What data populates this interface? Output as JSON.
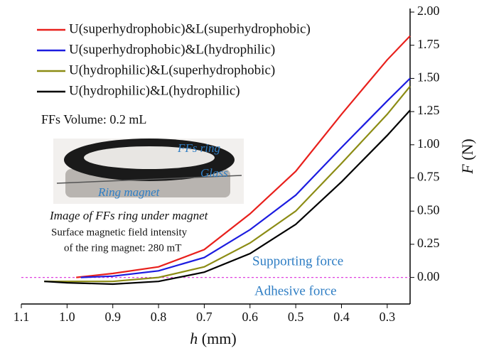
{
  "chart_data": {
    "type": "line",
    "x_label_symbol": "h",
    "x_label_unit": "(mm)",
    "y_label_symbol": "F",
    "y_label_unit": "(N)",
    "xlim": [
      1.1,
      0.25
    ],
    "xticks": [
      1.1,
      {
        "value": 1,
        "label": "1.0"
      },
      0.9,
      0.8,
      0.7,
      0.6,
      0.5,
      0.4,
      0.3
    ],
    "ylim": [
      -0.2,
      2.0
    ],
    "yticks": [
      {
        "value": 0,
        "label": "0.00"
      },
      {
        "value": 0.25,
        "label": "0.25"
      },
      {
        "value": 0.5,
        "label": "0.50"
      },
      {
        "value": 0.75,
        "label": "0.75"
      },
      {
        "value": 1,
        "label": "1.00"
      },
      {
        "value": 1.25,
        "label": "1.25"
      },
      {
        "value": 1.5,
        "label": "1.50"
      },
      {
        "value": 1.75,
        "label": "1.75"
      },
      {
        "value": 2,
        "label": "2.00"
      }
    ],
    "reference_line": {
      "value": 0,
      "color": "#e040e0"
    },
    "legend": "upper left",
    "series": [
      {
        "name": "U(superhydrophobic)&L(superhydrophobic)",
        "color": "#e8201c",
        "x": [
          0.98,
          0.9,
          0.8,
          0.7,
          0.6,
          0.5,
          0.4,
          0.3,
          0.25
        ],
        "values": [
          0.0,
          0.03,
          0.08,
          0.21,
          0.48,
          0.8,
          1.23,
          1.64,
          1.82
        ]
      },
      {
        "name": "U(superhydrophobic)&L(hydrophilic)",
        "color": "#1c1ce0",
        "x": [
          0.97,
          0.9,
          0.8,
          0.7,
          0.6,
          0.5,
          0.4,
          0.3,
          0.25
        ],
        "values": [
          0.0,
          0.01,
          0.05,
          0.15,
          0.36,
          0.62,
          0.98,
          1.33,
          1.5
        ]
      },
      {
        "name": "U(hydrophilic)&L(superhydrophobic)",
        "color": "#8c8c14",
        "x": [
          1.05,
          1.0,
          0.9,
          0.8,
          0.7,
          0.6,
          0.5,
          0.4,
          0.3,
          0.25
        ],
        "values": [
          -0.03,
          -0.03,
          -0.03,
          0.0,
          0.08,
          0.26,
          0.5,
          0.86,
          1.23,
          1.44
        ]
      },
      {
        "name": "U(hydrophilic)&L(hydrophilic)",
        "color": "#000000",
        "x": [
          1.05,
          1.0,
          0.9,
          0.8,
          0.7,
          0.6,
          0.5,
          0.4,
          0.3,
          0.25
        ],
        "values": [
          -0.03,
          -0.04,
          -0.05,
          -0.03,
          0.04,
          0.18,
          0.4,
          0.72,
          1.07,
          1.26
        ]
      }
    ],
    "annotations": {
      "volume": "FFs Volume: 0.2 mL",
      "photo_ring": "FFs ring",
      "photo_glass": "Glass",
      "photo_magnet": "Ring magnet",
      "photo_caption": "Image of FFs ring under magnet",
      "field_line1": "Surface magnetic field intensity",
      "field_line2": "of the  ring magnet: 280 mT",
      "supporting": "Supporting force",
      "adhesive": "Adhesive force"
    }
  }
}
